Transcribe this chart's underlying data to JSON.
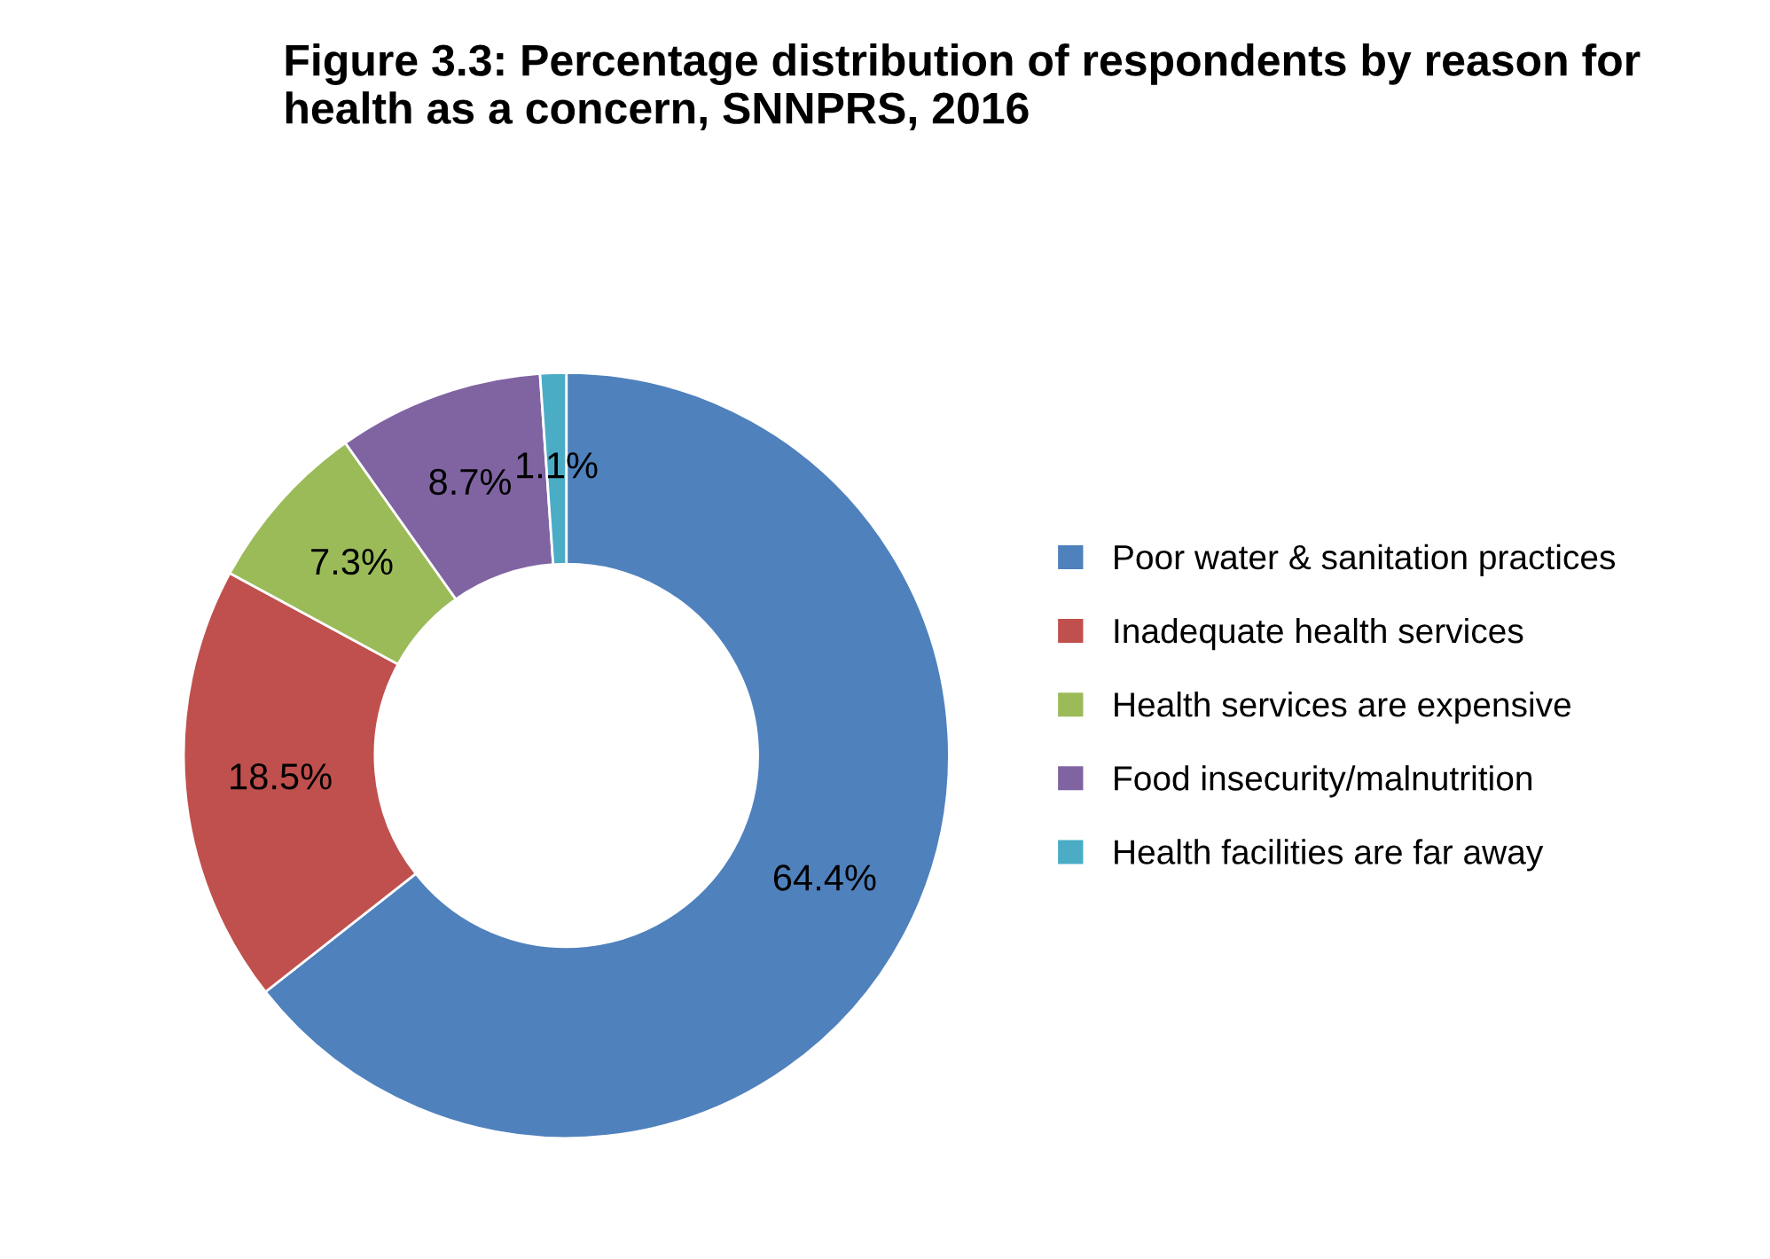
{
  "chart_data": {
    "type": "donut",
    "title": "Figure 3.3: Percentage distribution of respondents by reason for health as a concern, SNNPRS, 2016",
    "categories": [
      "Poor water & sanitation practices",
      "Inadequate health services",
      "Health services are expensive",
      "Food insecurity/malnutrition",
      "Health facilities are far away"
    ],
    "values": [
      64.4,
      18.5,
      7.3,
      8.7,
      1.1
    ],
    "colors": [
      "#4f81bd",
      "#c0504d",
      "#9bbb59",
      "#8064a2",
      "#4bacc6"
    ],
    "value_labels": [
      "64.4%",
      "18.5%",
      "7.3%",
      "8.7%",
      "1.1%"
    ],
    "legend": "right"
  }
}
